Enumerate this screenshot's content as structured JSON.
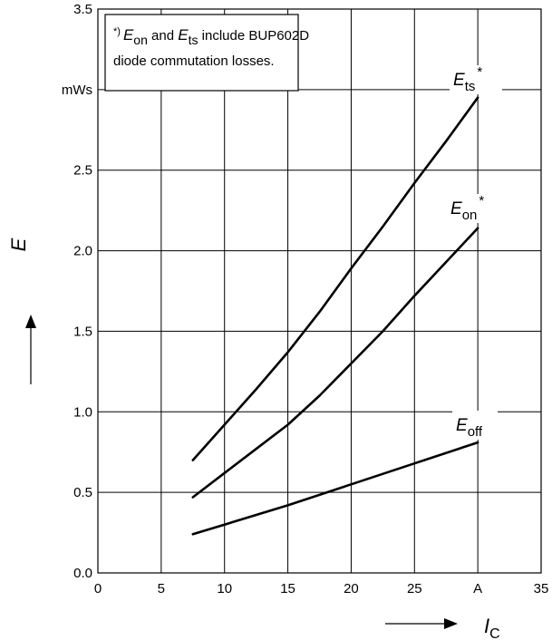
{
  "chart_data": {
    "type": "line",
    "xlabel": "I",
    "xlabel_sub": "C",
    "ylabel": "E",
    "xlim": [
      0,
      35
    ],
    "ylim": [
      0,
      3.5
    ],
    "x_ticks": [
      {
        "value": 0,
        "label": "0"
      },
      {
        "value": 5,
        "label": "5"
      },
      {
        "value": 10,
        "label": "10"
      },
      {
        "value": 15,
        "label": "15"
      },
      {
        "value": 20,
        "label": "20"
      },
      {
        "value": 25,
        "label": "25"
      },
      {
        "value": 30,
        "label": "A"
      },
      {
        "value": 35,
        "label": "35"
      }
    ],
    "y_ticks": [
      {
        "value": 0,
        "label": "0.0"
      },
      {
        "value": 0.5,
        "label": "0.5"
      },
      {
        "value": 1.0,
        "label": "1.0"
      },
      {
        "value": 1.5,
        "label": "1.5"
      },
      {
        "value": 2.0,
        "label": "2.0"
      },
      {
        "value": 2.5,
        "label": "2.5"
      },
      {
        "value": 3.0,
        "label": "mWs"
      },
      {
        "value": 3.5,
        "label": "3.5"
      }
    ],
    "grid": true,
    "series": [
      {
        "name": "E_ts*",
        "label_main": "E",
        "label_sub": "ts",
        "label_sup": "*",
        "x": [
          7.5,
          10,
          12.5,
          15,
          17.5,
          20,
          22.5,
          25,
          27.5,
          30
        ],
        "y": [
          0.7,
          0.92,
          1.14,
          1.37,
          1.62,
          1.89,
          2.15,
          2.42,
          2.68,
          2.95
        ]
      },
      {
        "name": "E_on*",
        "label_main": "E",
        "label_sub": "on",
        "label_sup": "*",
        "x": [
          7.5,
          10,
          12.5,
          15,
          17.5,
          20,
          22.5,
          25,
          27.5,
          30
        ],
        "y": [
          0.47,
          0.62,
          0.77,
          0.92,
          1.1,
          1.3,
          1.5,
          1.72,
          1.93,
          2.14
        ]
      },
      {
        "name": "E_off",
        "label_main": "E",
        "label_sub": "off",
        "label_sup": "",
        "x": [
          7.5,
          10,
          15,
          20,
          25,
          30
        ],
        "y": [
          0.24,
          0.3,
          0.42,
          0.55,
          0.68,
          0.81
        ]
      }
    ],
    "note": {
      "marker": "*)",
      "e_on_main": "E",
      "e_on_sub": "on",
      "and_text": " and ",
      "e_ts_main": "E",
      "e_ts_sub": "ts",
      "rest_line1": " include BUP602D",
      "line2": "diode commutation losses."
    }
  }
}
